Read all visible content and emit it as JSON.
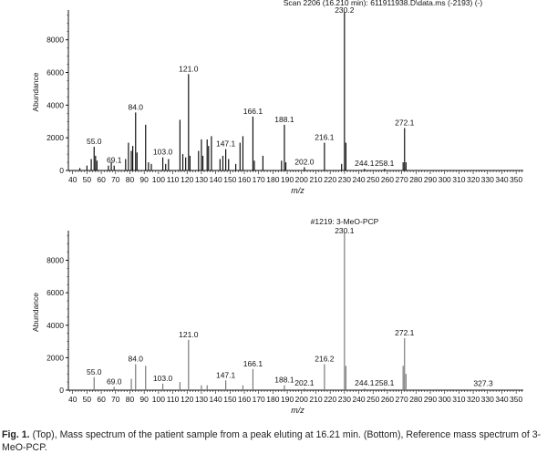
{
  "caption": {
    "label": "Fig. 1.",
    "text": "(Top), Mass spectrum of the patient sample from a peak eluting at 16.21 min. (Bottom), Reference mass spectrum of 3-MeO-PCP."
  },
  "chart_data": [
    {
      "type": "bar",
      "title": "Scan 2206 (16.210 min): 611911938.D\\data.ms (-2193) (-)",
      "xlabel": "m/z",
      "ylabel": "Abundance",
      "xlim": [
        37,
        355
      ],
      "ylim": [
        0,
        9600
      ],
      "xticks": [
        40,
        50,
        60,
        70,
        80,
        90,
        100,
        110,
        120,
        130,
        140,
        150,
        160,
        170,
        180,
        190,
        200,
        210,
        220,
        230,
        240,
        250,
        260,
        270,
        280,
        290,
        300,
        310,
        320,
        330,
        340,
        350
      ],
      "yticks": [
        0,
        2000,
        4000,
        6000,
        8000
      ],
      "peak_labels": [
        {
          "text": "55.0",
          "x": 55,
          "y": 1450
        },
        {
          "text": "69.1",
          "x": 69,
          "y": 300
        },
        {
          "text": "84.0",
          "x": 84,
          "y": 3550
        },
        {
          "text": "103.0",
          "x": 103,
          "y": 800
        },
        {
          "text": "121.0",
          "x": 121,
          "y": 5900
        },
        {
          "text": "147.1",
          "x": 147,
          "y": 1300
        },
        {
          "text": "166.1",
          "x": 166,
          "y": 3300
        },
        {
          "text": "188.1",
          "x": 188,
          "y": 2800
        },
        {
          "text": "202.0",
          "x": 202,
          "y": 200
        },
        {
          "text": "216.1",
          "x": 216,
          "y": 1700
        },
        {
          "text": "230.2",
          "x": 230,
          "y": 9700
        },
        {
          "text": "244.1",
          "x": 244,
          "y": 100
        },
        {
          "text": "258.1",
          "x": 258,
          "y": 100
        },
        {
          "text": "272.1",
          "x": 272,
          "y": 2600
        }
      ],
      "peaks": [
        {
          "x": 45,
          "y": 150
        },
        {
          "x": 50,
          "y": 300
        },
        {
          "x": 53,
          "y": 700
        },
        {
          "x": 55,
          "y": 1450
        },
        {
          "x": 56,
          "y": 900
        },
        {
          "x": 57,
          "y": 600
        },
        {
          "x": 65,
          "y": 300
        },
        {
          "x": 67,
          "y": 500
        },
        {
          "x": 69,
          "y": 300
        },
        {
          "x": 77,
          "y": 700
        },
        {
          "x": 79,
          "y": 1700
        },
        {
          "x": 81,
          "y": 1200
        },
        {
          "x": 82,
          "y": 1500
        },
        {
          "x": 84,
          "y": 3550
        },
        {
          "x": 85,
          "y": 1100
        },
        {
          "x": 91,
          "y": 2800
        },
        {
          "x": 93,
          "y": 500
        },
        {
          "x": 95,
          "y": 400
        },
        {
          "x": 103,
          "y": 800
        },
        {
          "x": 105,
          "y": 400
        },
        {
          "x": 107,
          "y": 700
        },
        {
          "x": 115,
          "y": 3100
        },
        {
          "x": 117,
          "y": 1000
        },
        {
          "x": 119,
          "y": 800
        },
        {
          "x": 121,
          "y": 5900
        },
        {
          "x": 122,
          "y": 900
        },
        {
          "x": 128,
          "y": 1200
        },
        {
          "x": 130,
          "y": 1900
        },
        {
          "x": 131,
          "y": 900
        },
        {
          "x": 134,
          "y": 1900
        },
        {
          "x": 135,
          "y": 1500
        },
        {
          "x": 137,
          "y": 2100
        },
        {
          "x": 143,
          "y": 700
        },
        {
          "x": 145,
          "y": 900
        },
        {
          "x": 147,
          "y": 1300
        },
        {
          "x": 149,
          "y": 700
        },
        {
          "x": 154,
          "y": 400
        },
        {
          "x": 157,
          "y": 1700
        },
        {
          "x": 159,
          "y": 2100
        },
        {
          "x": 166,
          "y": 3300
        },
        {
          "x": 167,
          "y": 600
        },
        {
          "x": 173,
          "y": 900
        },
        {
          "x": 186,
          "y": 600
        },
        {
          "x": 188,
          "y": 2800
        },
        {
          "x": 189,
          "y": 500
        },
        {
          "x": 202,
          "y": 200
        },
        {
          "x": 216,
          "y": 1700
        },
        {
          "x": 228,
          "y": 400
        },
        {
          "x": 230,
          "y": 9700
        },
        {
          "x": 231,
          "y": 1700
        },
        {
          "x": 244,
          "y": 100
        },
        {
          "x": 258,
          "y": 100
        },
        {
          "x": 271,
          "y": 500
        },
        {
          "x": 272,
          "y": 2600
        },
        {
          "x": 273,
          "y": 500
        }
      ]
    },
    {
      "type": "bar",
      "title": "#1219: 3-MeO-PCP",
      "xlabel": "m/z",
      "ylabel": "Abundance",
      "xlim": [
        37,
        355
      ],
      "ylim": [
        0,
        9600
      ],
      "xticks": [
        40,
        50,
        60,
        70,
        80,
        90,
        100,
        110,
        120,
        130,
        140,
        150,
        160,
        170,
        180,
        190,
        200,
        210,
        220,
        230,
        240,
        250,
        260,
        270,
        280,
        290,
        300,
        310,
        320,
        330,
        340,
        350
      ],
      "yticks": [
        0,
        2000,
        4000,
        6000,
        8000
      ],
      "peak_labels": [
        {
          "text": "55.0",
          "x": 55,
          "y": 800
        },
        {
          "text": "69.0",
          "x": 69,
          "y": 200
        },
        {
          "text": "84.0",
          "x": 84,
          "y": 1600
        },
        {
          "text": "103.0",
          "x": 103,
          "y": 400
        },
        {
          "text": "121.0",
          "x": 121,
          "y": 3100
        },
        {
          "text": "147.1",
          "x": 147,
          "y": 600
        },
        {
          "text": "166.1",
          "x": 166,
          "y": 1300
        },
        {
          "text": "188.1",
          "x": 188,
          "y": 300
        },
        {
          "text": "202.1",
          "x": 202,
          "y": 100
        },
        {
          "text": "216.2",
          "x": 216,
          "y": 1600
        },
        {
          "text": "230.1",
          "x": 230,
          "y": 9700
        },
        {
          "text": "244.1",
          "x": 244,
          "y": 100
        },
        {
          "text": "258.1",
          "x": 258,
          "y": 100
        },
        {
          "text": "272.1",
          "x": 272,
          "y": 3200
        },
        {
          "text": "327.3",
          "x": 327,
          "y": 80
        }
      ],
      "peaks": [
        {
          "x": 55,
          "y": 800
        },
        {
          "x": 69,
          "y": 200
        },
        {
          "x": 81,
          "y": 700
        },
        {
          "x": 84,
          "y": 1600
        },
        {
          "x": 91,
          "y": 1500
        },
        {
          "x": 103,
          "y": 400
        },
        {
          "x": 115,
          "y": 500
        },
        {
          "x": 121,
          "y": 3100
        },
        {
          "x": 130,
          "y": 300
        },
        {
          "x": 134,
          "y": 300
        },
        {
          "x": 147,
          "y": 600
        },
        {
          "x": 159,
          "y": 300
        },
        {
          "x": 166,
          "y": 1300
        },
        {
          "x": 188,
          "y": 300
        },
        {
          "x": 202,
          "y": 100
        },
        {
          "x": 216,
          "y": 1600
        },
        {
          "x": 230,
          "y": 9700
        },
        {
          "x": 231,
          "y": 1500
        },
        {
          "x": 244,
          "y": 100
        },
        {
          "x": 258,
          "y": 100
        },
        {
          "x": 271,
          "y": 1500
        },
        {
          "x": 272,
          "y": 3200
        },
        {
          "x": 273,
          "y": 1000
        },
        {
          "x": 327,
          "y": 80
        }
      ]
    }
  ]
}
